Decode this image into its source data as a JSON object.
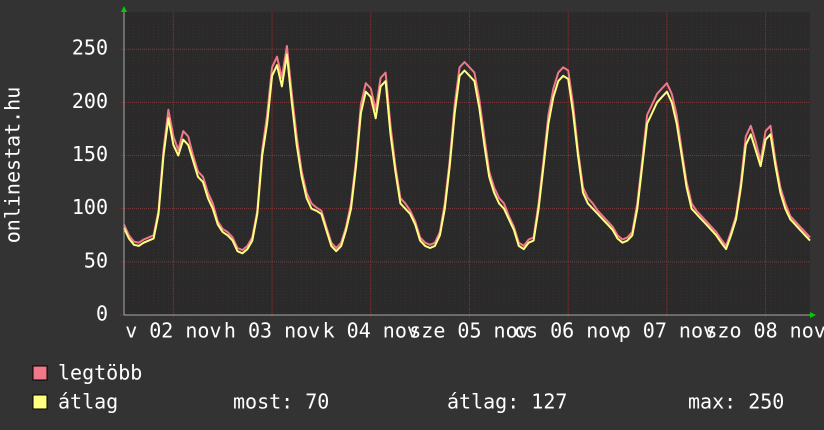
{
  "chart_data": {
    "type": "line",
    "ylabel": "onlinestat.hu",
    "categories": [
      null,
      null,
      null,
      null,
      null,
      null,
      null,
      null,
      null,
      null,
      "v 02 nov",
      null,
      null,
      null,
      null,
      null,
      null,
      null,
      null,
      null,
      null,
      null,
      null,
      null,
      null,
      null,
      null,
      null,
      null,
      null,
      "h 03 nov",
      null,
      null,
      null,
      null,
      null,
      null,
      null,
      null,
      null,
      null,
      null,
      null,
      null,
      null,
      null,
      null,
      null,
      null,
      null,
      "k 04 nov",
      null,
      null,
      null,
      null,
      null,
      null,
      null,
      null,
      null,
      null,
      null,
      null,
      null,
      null,
      null,
      null,
      null,
      null,
      null,
      "sze 05 nov",
      null,
      null,
      null,
      null,
      null,
      null,
      null,
      null,
      null,
      null,
      null,
      null,
      null,
      null,
      null,
      null,
      null,
      null,
      null,
      "cs 06 nov",
      null,
      null,
      null,
      null,
      null,
      null,
      null,
      null,
      null,
      null,
      null,
      null,
      null,
      null,
      null,
      null,
      null,
      null,
      null,
      "p 07 nov",
      null,
      null,
      null,
      null,
      null,
      null,
      null,
      null,
      null,
      null,
      null,
      null,
      null,
      null,
      null,
      null,
      null,
      null,
      null,
      "szo 08 nov",
      null,
      null,
      null,
      null,
      null,
      null,
      null,
      null,
      null
    ],
    "series": [
      {
        "name": "legtöbb",
        "color": "#f07888",
        "values": [
          85,
          75,
          69,
          68,
          71,
          73,
          75,
          98,
          155,
          193,
          168,
          155,
          173,
          168,
          150,
          135,
          130,
          115,
          105,
          88,
          81,
          78,
          73,
          63,
          61,
          65,
          73,
          98,
          155,
          188,
          233,
          243,
          223,
          253,
          208,
          168,
          135,
          115,
          105,
          101,
          98,
          83,
          68,
          63,
          68,
          83,
          105,
          145,
          198,
          218,
          213,
          193,
          223,
          228,
          178,
          140,
          110,
          105,
          98,
          88,
          73,
          68,
          66,
          68,
          78,
          105,
          145,
          198,
          233,
          238,
          233,
          228,
          203,
          168,
          135,
          120,
          110,
          105,
          93,
          83,
          68,
          65,
          71,
          73,
          105,
          145,
          188,
          213,
          228,
          233,
          230,
          198,
          155,
          120,
          110,
          105,
          98,
          93,
          88,
          83,
          75,
          71,
          73,
          78,
          105,
          145,
          188,
          198,
          208,
          213,
          218,
          208,
          188,
          155,
          125,
          105,
          98,
          93,
          88,
          83,
          78,
          71,
          65,
          78,
          93,
          125,
          168,
          178,
          163,
          145,
          173,
          178,
          145,
          120,
          105,
          93,
          88,
          83,
          78,
          73
        ]
      },
      {
        "name": "átlag",
        "color": "#ffff80",
        "values": [
          82,
          72,
          66,
          65,
          68,
          70,
          72,
          95,
          150,
          185,
          160,
          150,
          165,
          160,
          145,
          130,
          125,
          110,
          100,
          85,
          78,
          75,
          70,
          60,
          58,
          62,
          70,
          95,
          150,
          180,
          225,
          235,
          215,
          245,
          200,
          160,
          130,
          110,
          100,
          98,
          95,
          80,
          65,
          60,
          65,
          80,
          100,
          140,
          190,
          210,
          205,
          185,
          215,
          220,
          170,
          135,
          105,
          100,
          95,
          85,
          70,
          65,
          63,
          65,
          75,
          100,
          140,
          190,
          225,
          230,
          225,
          220,
          195,
          160,
          130,
          115,
          105,
          100,
          90,
          80,
          65,
          62,
          68,
          70,
          100,
          140,
          180,
          205,
          220,
          225,
          222,
          190,
          150,
          115,
          105,
          100,
          95,
          90,
          85,
          80,
          72,
          68,
          70,
          75,
          100,
          140,
          180,
          190,
          200,
          205,
          210,
          200,
          180,
          150,
          120,
          100,
          95,
          90,
          85,
          80,
          75,
          68,
          62,
          75,
          90,
          120,
          160,
          170,
          155,
          140,
          165,
          170,
          140,
          115,
          100,
          90,
          85,
          80,
          75,
          70
        ]
      }
    ],
    "stats": [
      "most: 70",
      "átlag: 127",
      "max: 250"
    ],
    "ylim": [
      0,
      285
    ],
    "yticks": [
      0,
      50,
      100,
      150,
      200,
      250
    ],
    "grid": true
  }
}
